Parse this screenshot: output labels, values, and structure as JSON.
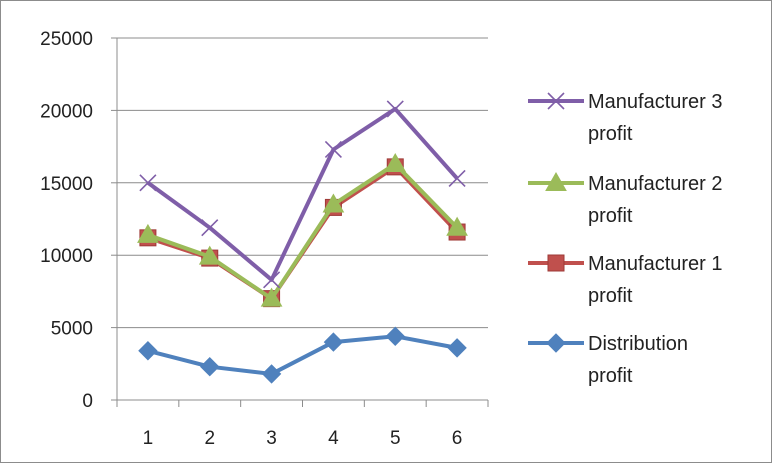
{
  "chart_data": {
    "type": "line",
    "title": "",
    "xlabel": "",
    "ylabel": "",
    "x": [
      "1",
      "2",
      "3",
      "4",
      "5",
      "6"
    ],
    "ylim": [
      0,
      25000
    ],
    "yticks": [
      0,
      5000,
      10000,
      15000,
      20000,
      25000
    ],
    "ytick_labels": [
      "0",
      "5000",
      "10000",
      "15000",
      "20000",
      "25000"
    ],
    "grid": "horizontal",
    "legend_position": "right",
    "series": [
      {
        "name_lines": [
          "Manufacturer 3",
          "profit"
        ],
        "color": "#7f5ea8",
        "marker": "x",
        "values": [
          15000,
          11900,
          8300,
          17300,
          20100,
          15300
        ]
      },
      {
        "name_lines": [
          "Manufacturer 2",
          "profit"
        ],
        "color": "#9bbb59",
        "marker": "triangle",
        "values": [
          11400,
          9900,
          7000,
          13500,
          16300,
          11900
        ]
      },
      {
        "name_lines": [
          "Manufacturer 1",
          "profit"
        ],
        "color": "#c0504d",
        "marker": "square",
        "values": [
          11200,
          9800,
          7000,
          13300,
          16100,
          11600
        ]
      },
      {
        "name_lines": [
          "Distribution",
          "profit"
        ],
        "color": "#4f81bd",
        "marker": "diamond",
        "values": [
          3400,
          2300,
          1800,
          4000,
          4400,
          3600
        ]
      }
    ]
  }
}
